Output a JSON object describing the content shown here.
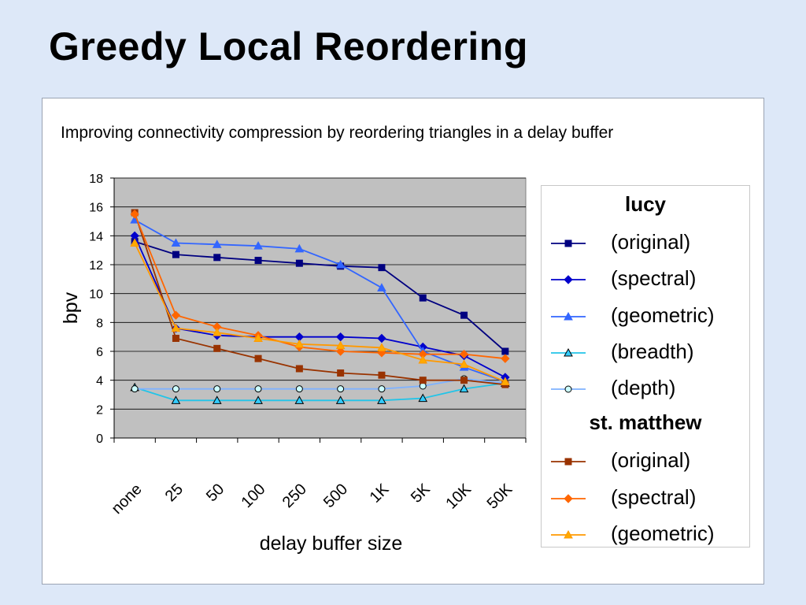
{
  "slide": {
    "title": "Greedy Local Reordering"
  },
  "chart_data": {
    "type": "line",
    "title": "Improving connectivity compression by reordering triangles in a delay buffer",
    "xlabel": "delay buffer size",
    "ylabel": "bpv",
    "categories": [
      "none",
      "25",
      "50",
      "100",
      "250",
      "500",
      "1K",
      "5K",
      "10K",
      "50K"
    ],
    "ylim": [
      0,
      18
    ],
    "yticks": [
      0,
      2,
      4,
      6,
      8,
      10,
      12,
      14,
      16,
      18
    ],
    "grid": true,
    "legend_position": "right",
    "plot_background": "#c0c0c0",
    "groups": [
      {
        "title": "lucy",
        "series": [
          {
            "name": "(original)",
            "color": "#000080",
            "marker": "square",
            "fill": "#000080",
            "values": [
              13.6,
              12.7,
              12.5,
              12.3,
              12.1,
              11.9,
              11.8,
              9.7,
              8.5,
              6.0
            ]
          },
          {
            "name": "(spectral)",
            "color": "#0000cc",
            "marker": "diamond",
            "fill": "#0000cc",
            "values": [
              14.0,
              7.6,
              7.1,
              7.0,
              7.0,
              7.0,
              6.9,
              6.3,
              5.7,
              4.2
            ]
          },
          {
            "name": "(geometric)",
            "color": "#3366ff",
            "marker": "triangle",
            "fill": "#3366ff",
            "values": [
              15.1,
              13.5,
              13.4,
              13.3,
              13.1,
              12.0,
              10.4,
              6.0,
              4.9,
              3.9
            ]
          },
          {
            "name": "(breadth)",
            "color": "#22c4e8",
            "marker": "triangle",
            "fill": "#33ccff",
            "values": [
              3.5,
              2.6,
              2.6,
              2.6,
              2.6,
              2.6,
              2.6,
              2.75,
              3.4,
              3.8
            ]
          },
          {
            "name": "(depth)",
            "color": "#7fb2ff",
            "marker": "circle",
            "fill": "#ccffff",
            "values": [
              3.4,
              3.4,
              3.4,
              3.4,
              3.4,
              3.4,
              3.4,
              3.6,
              4.1,
              3.8
            ]
          }
        ]
      },
      {
        "title": "st. matthew",
        "series": [
          {
            "name": "(original)",
            "color": "#993300",
            "marker": "square",
            "fill": "#993300",
            "values": [
              15.6,
              6.9,
              6.2,
              5.5,
              4.8,
              4.5,
              4.35,
              4.0,
              4.0,
              3.7
            ]
          },
          {
            "name": "(spectral)",
            "color": "#ff6600",
            "marker": "diamond",
            "fill": "#ff6600",
            "values": [
              15.5,
              8.5,
              7.7,
              7.1,
              6.3,
              6.0,
              5.9,
              5.8,
              5.8,
              5.5
            ]
          },
          {
            "name": "(geometric)",
            "color": "#ff9900",
            "marker": "triangle",
            "fill": "#ffaa00",
            "values": [
              13.5,
              7.6,
              7.3,
              6.9,
              6.5,
              6.4,
              6.25,
              5.4,
              5.1,
              3.9
            ]
          }
        ]
      }
    ]
  }
}
